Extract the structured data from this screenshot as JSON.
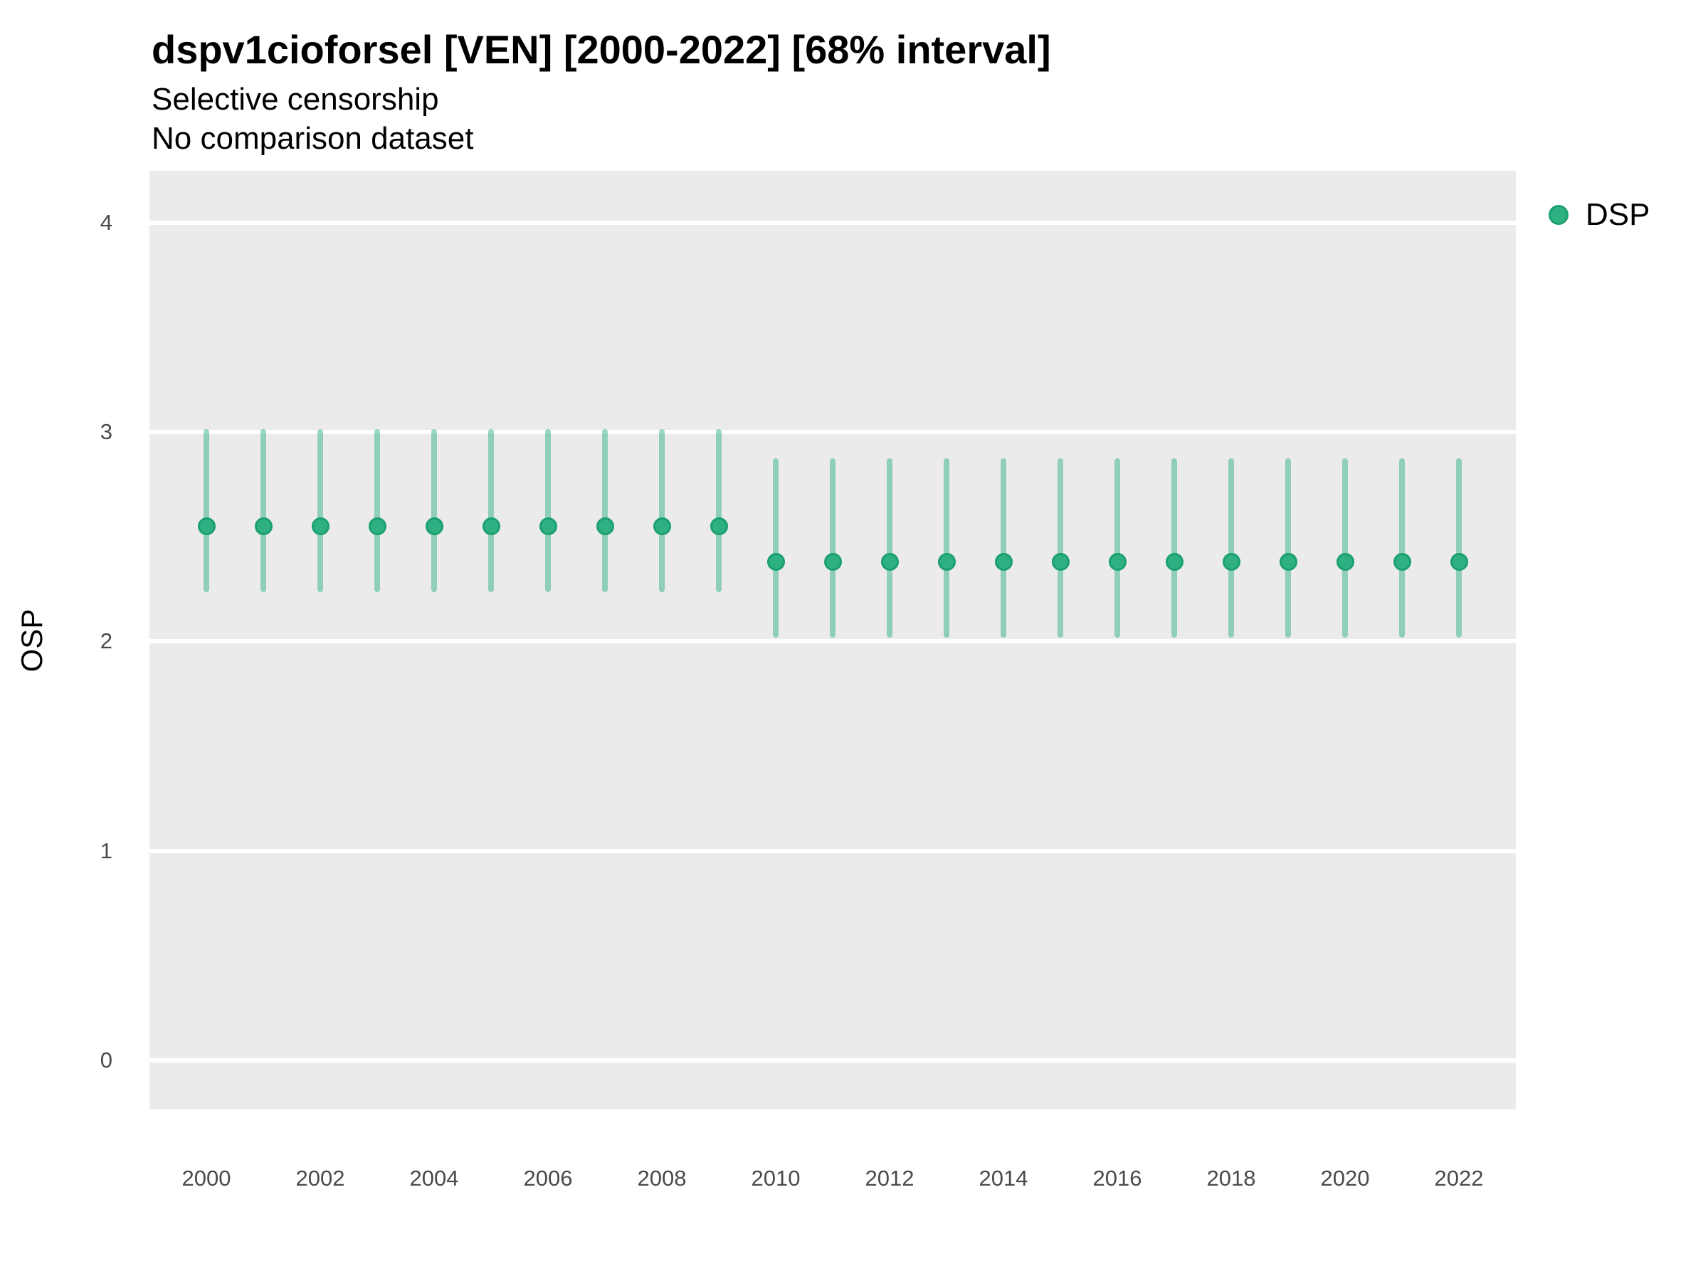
{
  "header": {
    "title": "dspv1cioforsel [VEN] [2000-2022] [68% interval]",
    "subtitle_line1": "Selective censorship",
    "subtitle_line2": "No comparison dataset"
  },
  "legend": {
    "label": "DSP",
    "marker_color": "#2EB082",
    "marker_border_color": "#1CA06F",
    "position": "right"
  },
  "y_axis": {
    "title": "OSP",
    "ticks": [
      4,
      3,
      2,
      1,
      0
    ],
    "tick_labels": [
      "4",
      "3",
      "2",
      "1",
      "0"
    ]
  },
  "x_axis": {
    "labeled_years": [
      2000,
      2002,
      2004,
      2006,
      2008,
      2010,
      2012,
      2014,
      2016,
      2018,
      2020,
      2022
    ],
    "tick_labels": [
      "2000",
      "2002",
      "2004",
      "2006",
      "2008",
      "2010",
      "2012",
      "2014",
      "2016",
      "2018",
      "2020",
      "2022"
    ]
  },
  "colors": {
    "panel_background": "#EBEBEB",
    "gridline": "#FFFFFF",
    "point_fill": "#2EB082",
    "point_border": "#1CA06F",
    "interval_bar": "rgba(51,178,131,0.5)"
  },
  "chart_data": {
    "type": "scatter",
    "subtype": "pointrange-errorbar",
    "title": "dspv1cioforsel [VEN] [2000-2022] [68% interval]",
    "subtitle": [
      "Selective censorship",
      "No comparison dataset"
    ],
    "xlabel": "",
    "ylabel": "OSP",
    "ylim": [
      -0.25,
      4.25
    ],
    "yticks": [
      0,
      1,
      2,
      3,
      4
    ],
    "grid": "horizontal-major-only",
    "legend_position": "right",
    "interval_level": "68%",
    "x": [
      2000,
      2001,
      2002,
      2003,
      2004,
      2005,
      2006,
      2007,
      2008,
      2009,
      2010,
      2011,
      2012,
      2013,
      2014,
      2015,
      2016,
      2017,
      2018,
      2019,
      2020,
      2021,
      2022
    ],
    "series": [
      {
        "name": "DSP",
        "mid": [
          2.55,
          2.55,
          2.55,
          2.55,
          2.55,
          2.55,
          2.55,
          2.55,
          2.55,
          2.55,
          2.38,
          2.38,
          2.38,
          2.38,
          2.38,
          2.38,
          2.38,
          2.38,
          2.38,
          2.38,
          2.38,
          2.38,
          2.38
        ],
        "lo": [
          2.25,
          2.25,
          2.25,
          2.25,
          2.25,
          2.25,
          2.25,
          2.25,
          2.25,
          2.25,
          2.03,
          2.03,
          2.03,
          2.03,
          2.03,
          2.03,
          2.03,
          2.03,
          2.03,
          2.03,
          2.03,
          2.03,
          2.03
        ],
        "hi": [
          3.0,
          3.0,
          3.0,
          3.0,
          3.0,
          3.0,
          3.0,
          3.0,
          3.0,
          3.0,
          2.86,
          2.86,
          2.86,
          2.86,
          2.86,
          2.86,
          2.86,
          2.86,
          2.86,
          2.86,
          2.86,
          2.86,
          2.86
        ]
      }
    ]
  }
}
